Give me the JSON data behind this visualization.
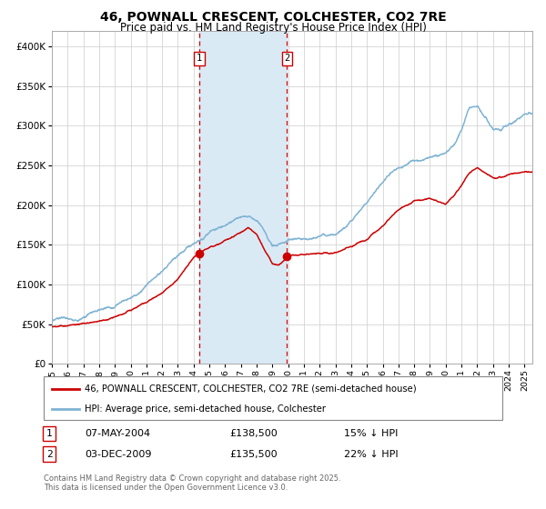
{
  "title_line1": "46, POWNALL CRESCENT, COLCHESTER, CO2 7RE",
  "title_line2": "Price paid vs. HM Land Registry's House Price Index (HPI)",
  "red_label": "46, POWNALL CRESCENT, COLCHESTER, CO2 7RE (semi-detached house)",
  "blue_label": "HPI: Average price, semi-detached house, Colchester",
  "annotation1_label": "1",
  "annotation1_date": "07-MAY-2004",
  "annotation1_price": "£138,500",
  "annotation1_hpi": "15% ↓ HPI",
  "annotation2_label": "2",
  "annotation2_date": "03-DEC-2009",
  "annotation2_price": "£135,500",
  "annotation2_hpi": "22% ↓ HPI",
  "footnote": "Contains HM Land Registry data © Crown copyright and database right 2025.\nThis data is licensed under the Open Government Licence v3.0.",
  "red_color": "#cc0000",
  "blue_color": "#7fb3d3",
  "shade_color": "#daeaf5",
  "vline_color": "#cc0000",
  "background_color": "#ffffff",
  "grid_color": "#cccccc",
  "ylim": [
    0,
    420000
  ],
  "yticks": [
    0,
    50000,
    100000,
    150000,
    200000,
    250000,
    300000,
    350000,
    400000
  ],
  "year_start": 1995,
  "year_end": 2025,
  "vline1_year": 2004.35,
  "vline2_year": 2009.92,
  "dot1_year": 2004.35,
  "dot1_value": 138500,
  "dot2_year": 2009.92,
  "dot2_value": 135500,
  "hpi_anchors_years": [
    1995.0,
    1996.0,
    1997.0,
    1998.0,
    1999.0,
    2000.0,
    2001.0,
    2002.0,
    2003.0,
    2004.0,
    2004.35,
    2005.0,
    2006.0,
    2007.0,
    2007.5,
    2008.0,
    2008.5,
    2009.0,
    2009.5,
    2009.92,
    2010.0,
    2011.0,
    2012.0,
    2013.0,
    2014.0,
    2015.0,
    2016.0,
    2017.0,
    2017.5,
    2018.0,
    2019.0,
    2020.0,
    2020.5,
    2021.0,
    2021.5,
    2022.0,
    2022.5,
    2023.0,
    2023.5,
    2024.0,
    2024.5,
    2025.0
  ],
  "hpi_anchors_vals": [
    53000,
    55000,
    57000,
    61000,
    68000,
    80000,
    97000,
    118000,
    143000,
    157000,
    161000,
    172000,
    183000,
    198000,
    203000,
    197000,
    185000,
    168000,
    170000,
    174000,
    178000,
    180000,
    182000,
    188000,
    205000,
    222000,
    248000,
    265000,
    270000,
    272000,
    272000,
    276000,
    285000,
    305000,
    335000,
    340000,
    325000,
    308000,
    305000,
    315000,
    320000,
    328000
  ],
  "red_anchors_years": [
    1995.0,
    1996.0,
    1997.0,
    1998.0,
    1999.0,
    2000.0,
    2001.0,
    2002.0,
    2003.0,
    2003.5,
    2004.0,
    2004.35,
    2005.0,
    2006.0,
    2007.0,
    2007.5,
    2008.0,
    2008.5,
    2009.0,
    2009.4,
    2009.92,
    2010.0,
    2011.0,
    2012.0,
    2013.0,
    2014.0,
    2015.0,
    2016.0,
    2017.0,
    2017.5,
    2018.0,
    2019.0,
    2020.0,
    2020.5,
    2021.0,
    2021.5,
    2022.0,
    2022.5,
    2023.0,
    2023.5,
    2024.0,
    2024.5,
    2025.0
  ],
  "red_anchors_vals": [
    47000,
    48000,
    50000,
    53000,
    57000,
    66000,
    76000,
    90000,
    108000,
    122000,
    134000,
    138500,
    147000,
    156000,
    165000,
    170000,
    162000,
    145000,
    128000,
    126000,
    135500,
    139000,
    141000,
    142000,
    144000,
    151000,
    161000,
    178000,
    198000,
    205000,
    210000,
    213000,
    208000,
    218000,
    232000,
    248000,
    255000,
    248000,
    242000,
    242000,
    247000,
    250000,
    252000
  ]
}
